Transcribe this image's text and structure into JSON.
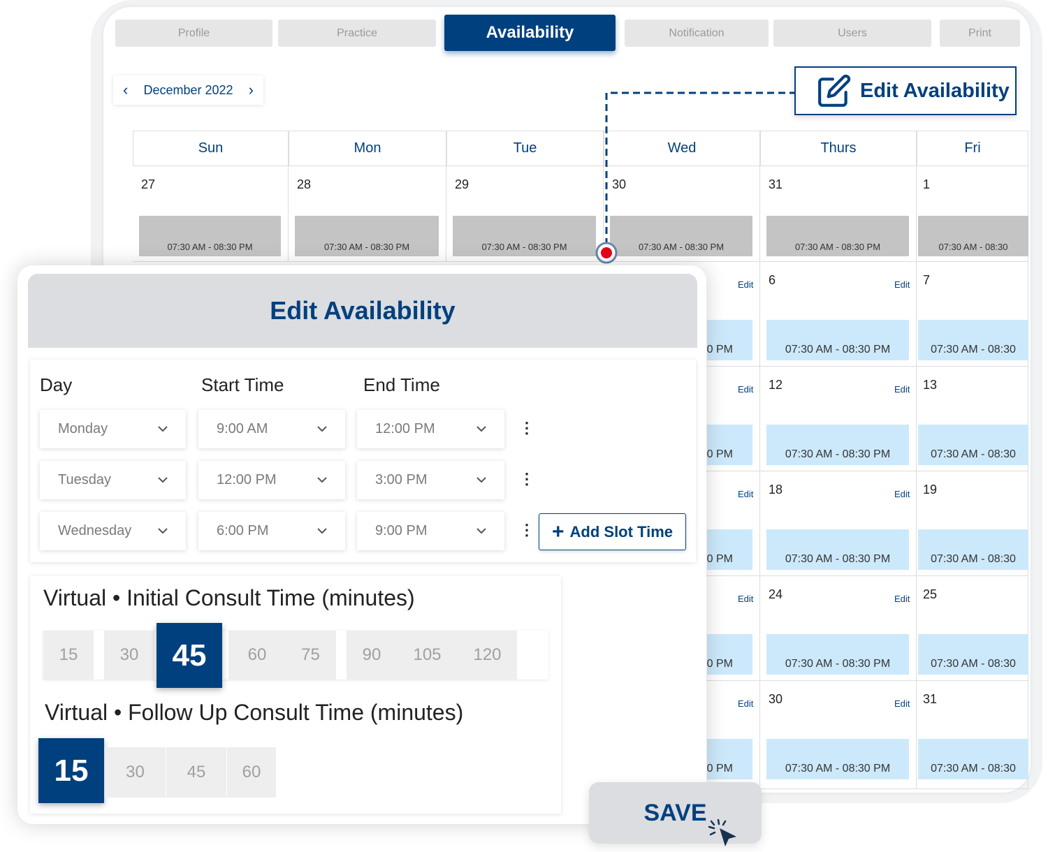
{
  "tabs": [
    "Profile",
    "Practice",
    "Availability",
    "Notification",
    "Users",
    "Print"
  ],
  "active_tab": "Availability",
  "month_nav": {
    "label": "December 2022",
    "prev": "‹",
    "next": "›"
  },
  "edit_availability_button": "Edit Availability",
  "calendar": {
    "days": [
      "Sun",
      "Mon",
      "Tue",
      "Wed",
      "Thurs",
      "Fri"
    ],
    "first_row_dates": [
      "27",
      "28",
      "29",
      "30",
      "31",
      "1"
    ],
    "slot_text": "07:30 AM - 08:30 PM",
    "slot_text_truncated": "07:30 AM - 08:30",
    "slot_text_partial": "0 PM",
    "edit_label": "Edit",
    "thurs_dates": [
      "6",
      "12",
      "18",
      "24",
      "30"
    ],
    "fri_dates": [
      "7",
      "13",
      "19",
      "25",
      "31"
    ]
  },
  "modal": {
    "title": "Edit Availability",
    "headers": {
      "day": "Day",
      "start": "Start Time",
      "end": "End Time"
    },
    "slots": [
      {
        "day": "Monday",
        "start": "9:00 AM",
        "end": "12:00 PM"
      },
      {
        "day": "Tuesday",
        "start": "12:00 PM",
        "end": "3:00 PM"
      },
      {
        "day": "Wednesday",
        "start": "6:00 PM",
        "end": "9:00 PM"
      }
    ],
    "add_slot_label": "Add Slot Time",
    "initial": {
      "title": "Virtual • Initial Consult Time (minutes)",
      "options": [
        "15",
        "30",
        "45",
        "60",
        "75",
        "90",
        "105",
        "120"
      ],
      "selected": "45"
    },
    "followup": {
      "title": "Virtual • Follow Up Consult Time (minutes)",
      "options": [
        "15",
        "30",
        "45",
        "60"
      ],
      "selected": "15"
    },
    "save_label": "SAVE"
  },
  "colors": {
    "brand": "#00407f",
    "slot_blue": "#cce9fb",
    "slot_gray": "#c4c4c4",
    "marker": "#e8001c"
  }
}
